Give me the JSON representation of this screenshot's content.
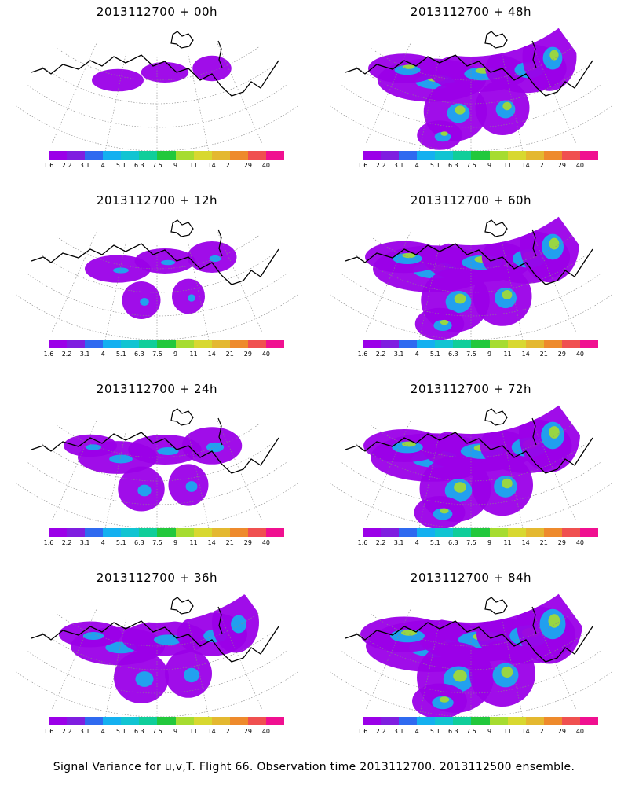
{
  "panels": [
    {
      "title": "2013112700 + 00h",
      "level": 0.15
    },
    {
      "title": "2013112700 + 48h",
      "level": 0.75
    },
    {
      "title": "2013112700 + 12h",
      "level": 0.3
    },
    {
      "title": "2013112700 + 60h",
      "level": 0.85
    },
    {
      "title": "2013112700 + 24h",
      "level": 0.45
    },
    {
      "title": "2013112700 + 72h",
      "level": 0.9
    },
    {
      "title": "2013112700 + 36h",
      "level": 0.6
    },
    {
      "title": "2013112700 + 84h",
      "level": 1.0
    }
  ],
  "colorbar": {
    "colors": [
      "#9b00e8",
      "#7f1ee0",
      "#2f6af0",
      "#14b0f0",
      "#11c4d2",
      "#10ce9a",
      "#22c83c",
      "#a6dc30",
      "#d8d830",
      "#e4b830",
      "#ee8a2c",
      "#f05050",
      "#f01090"
    ],
    "labels": [
      "1.6",
      "2.2",
      "3.1",
      "4",
      "5.1",
      "6.3",
      "7.5",
      "9",
      "11",
      "14",
      "21",
      "29",
      "40"
    ]
  },
  "caption": "Signal Variance for u,v,T. Flight 66. Observation time 2013112700. 2013112500 ensemble."
}
